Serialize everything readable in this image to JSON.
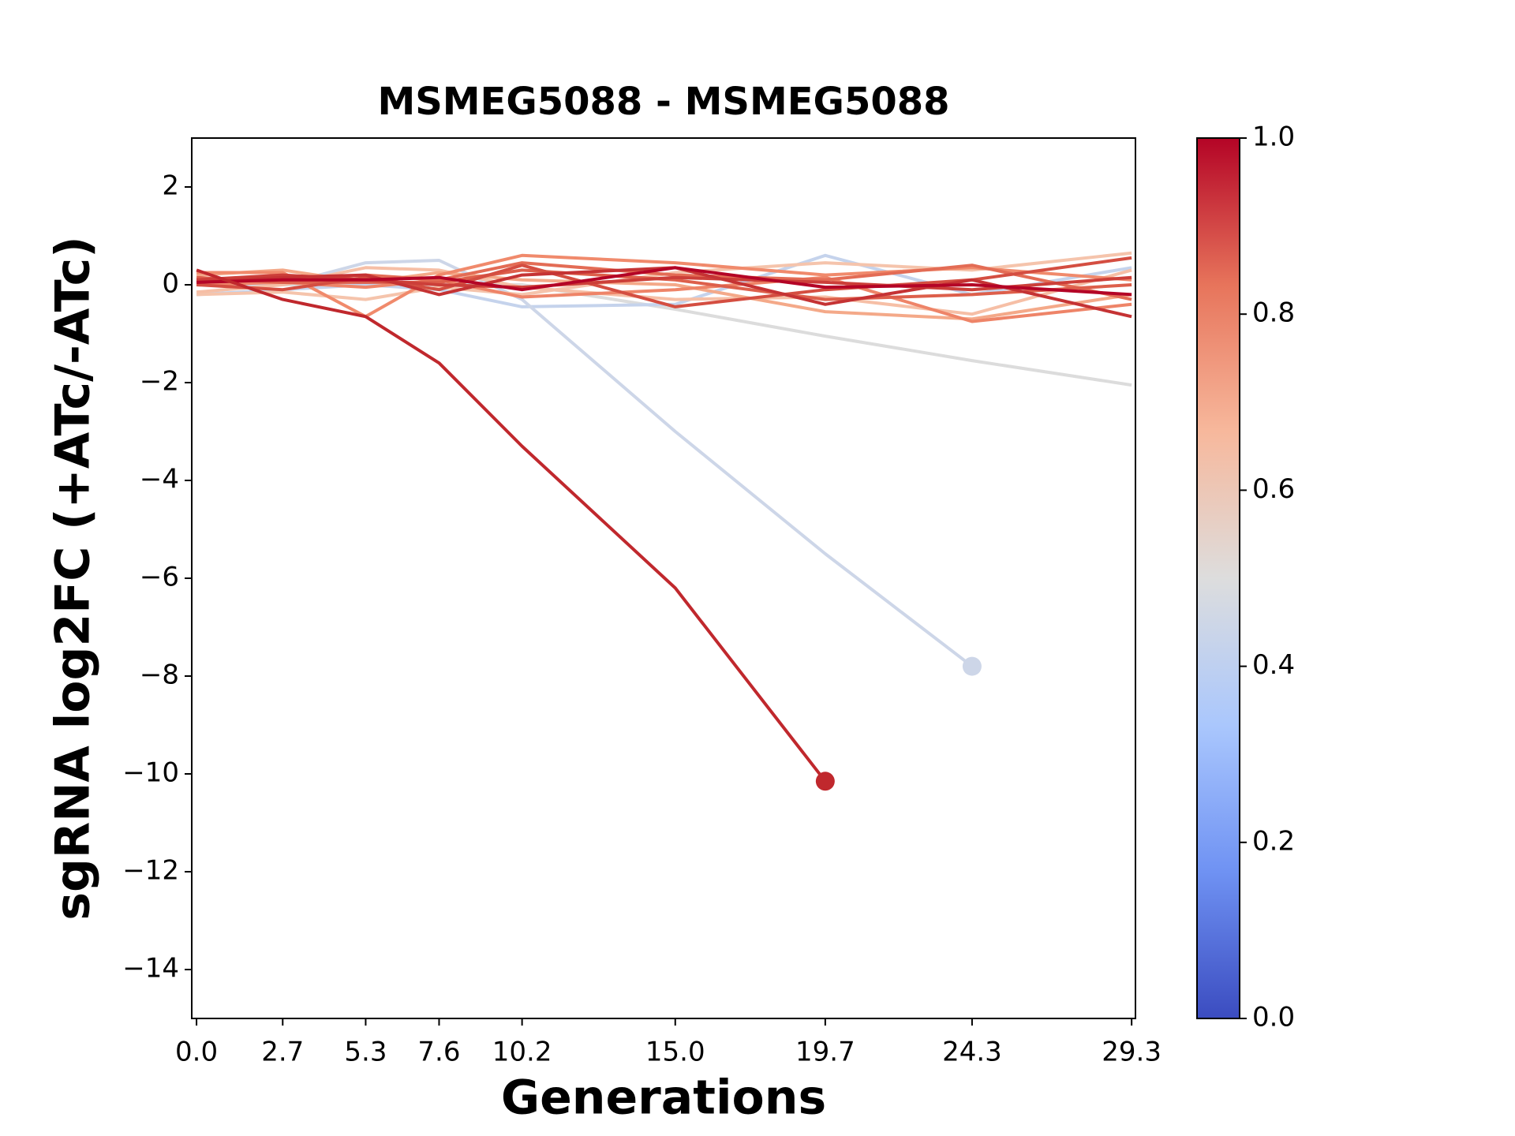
{
  "chart_data": {
    "type": "line",
    "title": "MSMEG5088 - MSMEG5088",
    "xlabel": "Generations",
    "ylabel": "sgRNA log2FC (+ATc/-ATc)",
    "x": [
      0,
      2.7,
      5.3,
      7.6,
      10.2,
      15,
      19.7,
      24.3,
      29.3
    ],
    "xlim": [
      -0.15,
      29.42
    ],
    "xticks": [
      {
        "value": 0,
        "label": "0.0"
      },
      2.7,
      5.3,
      7.6,
      10.2,
      {
        "value": 15,
        "label": "15.0"
      },
      19.7,
      24.3,
      29.3
    ],
    "ylim": [
      -15,
      3
    ],
    "yticks": [
      {
        "value": 2,
        "label": "2"
      },
      {
        "value": 0,
        "label": "0"
      },
      {
        "value": -2,
        "label": "−2"
      },
      {
        "value": -4,
        "label": "−4"
      },
      {
        "value": -6,
        "label": "−6"
      },
      {
        "value": -8,
        "label": "−8"
      },
      {
        "value": -10,
        "label": "−10"
      },
      {
        "value": -12,
        "label": "−12"
      },
      {
        "value": -14,
        "label": "−14"
      }
    ],
    "colorbar": {
      "lim": [
        0,
        1
      ],
      "ticks": [
        {
          "value": 0,
          "label": "0.0"
        },
        {
          "value": 0.2,
          "label": "0.2"
        },
        {
          "value": 0.4,
          "label": "0.4"
        },
        {
          "value": 0.6,
          "label": "0.6"
        },
        {
          "value": 0.8,
          "label": "0.8"
        },
        {
          "value": 1,
          "label": "1.0"
        }
      ],
      "colors": [
        "#3b4cc0",
        "#6f92f3",
        "#aac7fd",
        "#dddddd",
        "#f7b89c",
        "#e7745b",
        "#b40426"
      ]
    },
    "series": [
      {
        "color": "#dcdcdc",
        "values": [
          0,
          0,
          0,
          0,
          0,
          -0.5,
          -1.05,
          -1.55,
          -2.05
        ]
      },
      {
        "color": "#c5d3ec",
        "values": [
          -0.2,
          -0.1,
          0,
          -0.1,
          -0.45,
          -0.4,
          0.6,
          -0.2,
          0.35
        ]
      },
      {
        "color": "#cdd6e8",
        "values": [
          0,
          0,
          0.45,
          0.5,
          -0.3,
          -3,
          -5.5,
          -7.8,
          null
        ],
        "end_marker": true
      },
      {
        "color": "#f5c4ac",
        "values": [
          -0.2,
          -0.15,
          -0.3,
          -0.05,
          -0.2,
          0.25,
          0.45,
          0.3,
          0.65
        ]
      },
      {
        "color": "#f6bfa6",
        "values": [
          -0.15,
          0,
          0.35,
          0.3,
          -0.05,
          -0.3,
          -0.25,
          -0.6,
          0.3
        ]
      },
      {
        "color": "#f4a989",
        "values": [
          0.2,
          0.3,
          0.05,
          0.25,
          0.1,
          0,
          -0.55,
          -0.7,
          -0.2
        ]
      },
      {
        "color": "#f08a6c",
        "values": [
          0.25,
          0.25,
          -0.65,
          0.2,
          0.6,
          0.45,
          0.2,
          0.35,
          0.1
        ]
      },
      {
        "color": "#ee8468",
        "values": [
          0,
          0.05,
          -0.05,
          0.1,
          -0.25,
          -0.1,
          0.15,
          -0.75,
          -0.4
        ]
      },
      {
        "color": "#e36c55",
        "values": [
          0.1,
          0.1,
          0.2,
          0.1,
          0.45,
          0.2,
          0.1,
          0.4,
          -0.3
        ]
      },
      {
        "color": "#dd5f4b",
        "values": [
          0.15,
          0.05,
          0.05,
          0.05,
          0.3,
          0.1,
          -0.3,
          -0.2,
          0
        ]
      },
      {
        "color": "#d44e41",
        "values": [
          0,
          -0.1,
          0.15,
          -0.1,
          0.4,
          -0.45,
          -0.1,
          0.1,
          0.55
        ]
      },
      {
        "color": "#cc3f39",
        "values": [
          0.1,
          0.2,
          0.1,
          0,
          -0.05,
          0.15,
          0.05,
          -0.1,
          0.15
        ]
      },
      {
        "color": "#c53334",
        "values": [
          0.05,
          0.15,
          0.2,
          -0.2,
          0.2,
          0.35,
          -0.4,
          0.1,
          -0.65
        ]
      },
      {
        "color": "#b40426",
        "values": [
          0.05,
          0.1,
          0.1,
          0.15,
          -0.1,
          0.35,
          -0.05,
          0,
          -0.2
        ]
      },
      {
        "color": "#c0282d",
        "values": [
          0.3,
          -0.3,
          -0.65,
          -1.6,
          -3.3,
          -6.2,
          -10.15,
          null,
          null
        ],
        "end_marker": true
      }
    ]
  }
}
